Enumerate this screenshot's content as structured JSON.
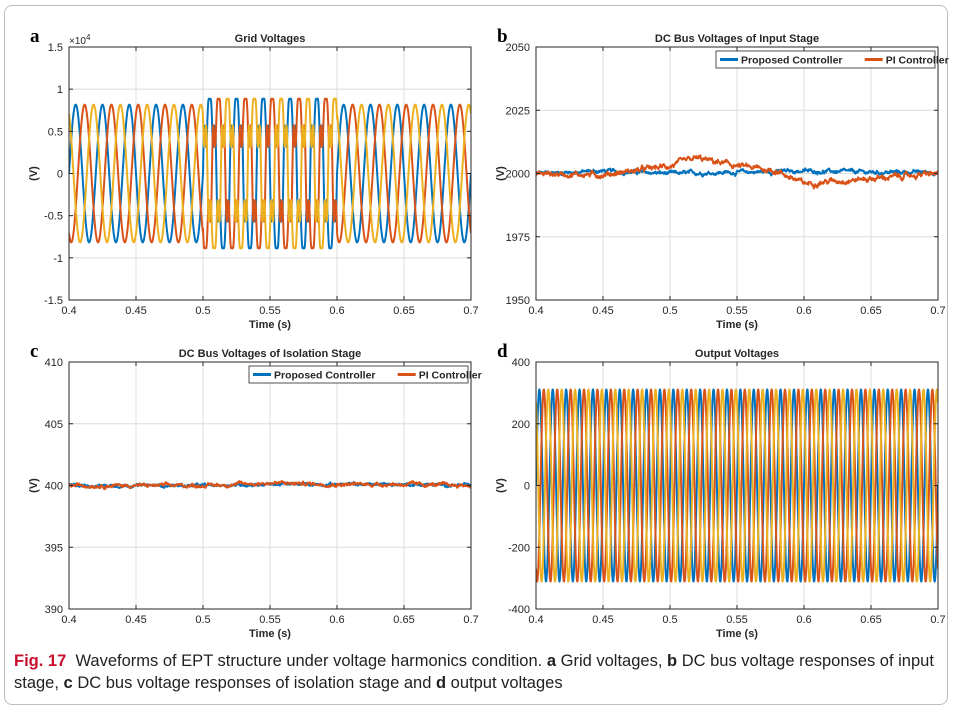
{
  "figure": {
    "panel_letters": [
      "a",
      "b",
      "c",
      "d"
    ],
    "caption": {
      "label": "Fig. 17",
      "intro": "Waveforms of EPT structure under voltage harmonics condition.",
      "a_letter": "a",
      "a_text": "Grid voltages,",
      "b_letter": "b",
      "b_text": "DC bus voltage responses of input stage,",
      "c_letter": "c",
      "c_text": "DC bus voltage responses of isolation stage and",
      "d_letter": "d",
      "d_text": "output voltages"
    }
  },
  "colors": {
    "blue": "#0072bd",
    "orange": "#d95319",
    "yellow": "#edb120",
    "grid": "#dcdcdc",
    "axis": "#262626"
  },
  "chart_data": [
    {
      "id": "a",
      "type": "line",
      "title": "Grid Voltages",
      "xlabel": "Time (s)",
      "ylabel": "(V)",
      "xlim": [
        0.4,
        0.7
      ],
      "ylim": [
        -15000,
        15000
      ],
      "xticks": [
        0.4,
        0.45,
        0.5,
        0.55,
        0.6,
        0.65,
        0.7
      ],
      "xticklabels": [
        "0.4",
        "0.45",
        "0.5",
        "0.55",
        "0.6",
        "0.65",
        "0.7"
      ],
      "yticks": [
        -15000,
        -10000,
        -5000,
        0,
        5000,
        10000,
        15000
      ],
      "yticklabels": [
        "-1.5",
        "-1",
        "-0.5",
        "0",
        "0.5",
        "1",
        "1.5"
      ],
      "exponent_label": "×10",
      "exponent_power": "4",
      "grid": true,
      "legend": null,
      "series": [
        {
          "color": "blue",
          "kind": "sine",
          "amplitude": 8165,
          "frequency_hz": 50,
          "phase_deg": 0,
          "harmonic_window": [
            0.5,
            0.6
          ],
          "harmonic_peak": 10500
        },
        {
          "color": "orange",
          "kind": "sine",
          "amplitude": 8165,
          "frequency_hz": 50,
          "phase_deg": -120,
          "harmonic_window": [
            0.5,
            0.6
          ],
          "harmonic_peak": 10500
        },
        {
          "color": "yellow",
          "kind": "sine",
          "amplitude": 8165,
          "frequency_hz": 50,
          "phase_deg": 120,
          "harmonic_window": [
            0.5,
            0.6
          ],
          "harmonic_peak": 10500
        }
      ]
    },
    {
      "id": "b",
      "type": "line",
      "title": "DC Bus Voltages of Input Stage",
      "xlabel": "Time (s)",
      "ylabel": "(V)",
      "xlim": [
        0.4,
        0.7
      ],
      "ylim": [
        1950,
        2050
      ],
      "xticks": [
        0.4,
        0.45,
        0.5,
        0.55,
        0.6,
        0.65,
        0.7
      ],
      "xticklabels": [
        "0.4",
        "0.45",
        "0.5",
        "0.55",
        "0.6",
        "0.65",
        "0.7"
      ],
      "yticks": [
        1950,
        1975,
        2000,
        2025,
        2050
      ],
      "yticklabels": [
        "1950",
        "1975",
        "2000",
        "2025",
        "2050"
      ],
      "grid": true,
      "legend": {
        "position": "top-right",
        "entries": [
          {
            "label": "Proposed Controller",
            "color": "blue"
          },
          {
            "label": "PI Controller",
            "color": "orange"
          }
        ]
      },
      "series": [
        {
          "name": "Proposed Controller",
          "color": "blue",
          "kind": "noisy",
          "x": [
            0.4,
            0.45,
            0.5,
            0.55,
            0.6,
            0.65,
            0.7
          ],
          "y": [
            2000,
            2001,
            2000,
            2000.5,
            2001,
            2000.5,
            2000.5
          ],
          "ripple": 0.8
        },
        {
          "name": "PI Controller",
          "color": "orange",
          "kind": "noisy",
          "x": [
            0.4,
            0.45,
            0.5,
            0.52,
            0.55,
            0.58,
            0.6,
            0.62,
            0.65,
            0.7
          ],
          "y": [
            2000,
            1999.5,
            2003,
            2006,
            2003,
            2001,
            1996,
            1997,
            1998,
            2000
          ],
          "ripple": 1.1
        }
      ]
    },
    {
      "id": "c",
      "type": "line",
      "title": "DC Bus Voltages of Isolation Stage",
      "xlabel": "Time (s)",
      "ylabel": "(V)",
      "xlim": [
        0.4,
        0.7
      ],
      "ylim": [
        390,
        410
      ],
      "xticks": [
        0.4,
        0.45,
        0.5,
        0.55,
        0.6,
        0.65,
        0.7
      ],
      "xticklabels": [
        "0.4",
        "0.45",
        "0.5",
        "0.55",
        "0.6",
        "0.65",
        "0.7"
      ],
      "yticks": [
        390,
        395,
        400,
        405,
        410
      ],
      "yticklabels": [
        "390",
        "395",
        "400",
        "405",
        "410"
      ],
      "grid": true,
      "legend": {
        "position": "top-right",
        "entries": [
          {
            "label": "Proposed Controller",
            "color": "blue"
          },
          {
            "label": "PI Controller",
            "color": "orange"
          }
        ]
      },
      "series": [
        {
          "name": "Proposed Controller",
          "color": "blue",
          "kind": "noisy",
          "x": [
            0.4,
            0.5,
            0.55,
            0.6,
            0.65,
            0.7
          ],
          "y": [
            400,
            400,
            400.1,
            400.1,
            400.1,
            400
          ],
          "ripple": 0.12
        },
        {
          "name": "PI Controller",
          "color": "orange",
          "kind": "noisy",
          "x": [
            0.4,
            0.5,
            0.55,
            0.6,
            0.65,
            0.7
          ],
          "y": [
            400,
            400,
            400.2,
            400.1,
            400.1,
            400
          ],
          "ripple": 0.15
        }
      ]
    },
    {
      "id": "d",
      "type": "line",
      "title": "Output Voltages",
      "xlabel": "Time (s)",
      "ylabel": "(V)",
      "xlim": [
        0.4,
        0.7
      ],
      "ylim": [
        -400,
        400
      ],
      "xticks": [
        0.4,
        0.45,
        0.5,
        0.55,
        0.6,
        0.65,
        0.7
      ],
      "xticklabels": [
        "0.4",
        "0.45",
        "0.5",
        "0.55",
        "0.6",
        "0.65",
        "0.7"
      ],
      "yticks": [
        -400,
        -200,
        0,
        200,
        400
      ],
      "yticklabels": [
        "-400",
        "-200",
        "0",
        "200",
        "400"
      ],
      "grid": true,
      "legend": null,
      "series": [
        {
          "color": "blue",
          "kind": "sine",
          "amplitude": 311,
          "frequency_hz": 100,
          "phase_deg": 0
        },
        {
          "color": "orange",
          "kind": "sine",
          "amplitude": 311,
          "frequency_hz": 100,
          "phase_deg": -120
        },
        {
          "color": "yellow",
          "kind": "sine",
          "amplitude": 311,
          "frequency_hz": 100,
          "phase_deg": 120
        }
      ]
    }
  ]
}
